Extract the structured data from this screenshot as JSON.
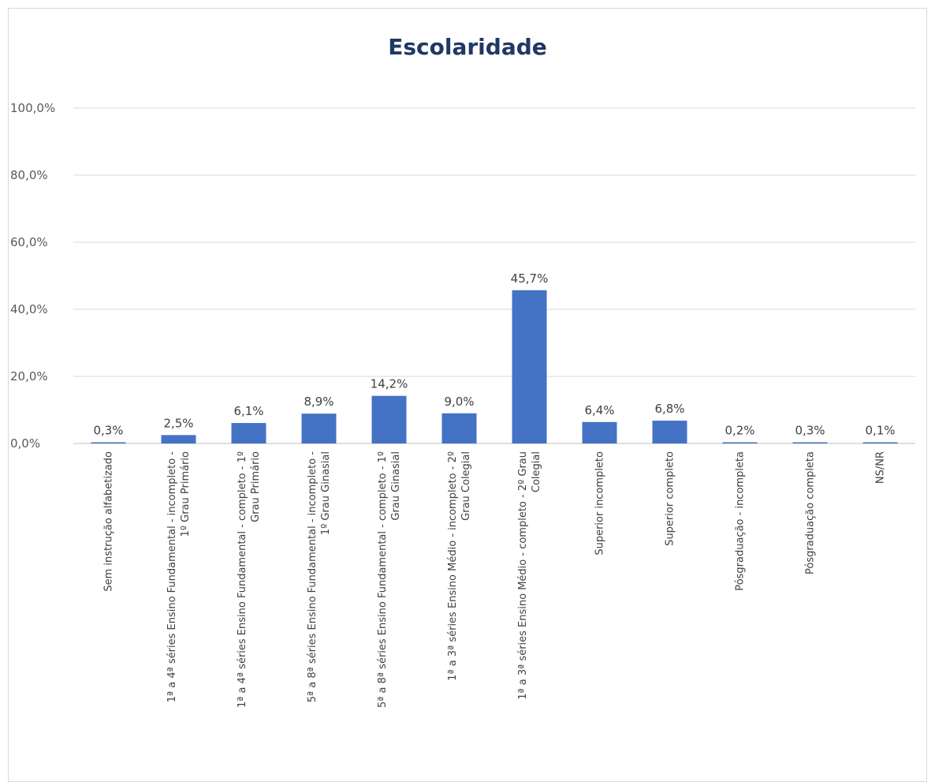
{
  "chart_data": {
    "type": "bar",
    "title": "Escolaridade",
    "xlabel": "",
    "ylabel": "",
    "ylim": [
      0,
      100
    ],
    "yticks": [
      "0,0%",
      "20,0%",
      "40,0%",
      "60,0%",
      "80,0%",
      "100,0%"
    ],
    "ytick_values": [
      0,
      20,
      40,
      60,
      80,
      100
    ],
    "grid": true,
    "legend": "none",
    "bar_color": "#4472c4",
    "categories": [
      [
        "Sem instrução alfabetizado"
      ],
      [
        "1ª a 4ª séries Ensino Fundamental - incompleto -",
        "1º Grau Primário"
      ],
      [
        "1ª a 4ª séries Ensino Fundamental - completo - 1º",
        "Grau Primário"
      ],
      [
        "5ª a 8ª séries Ensino Fundamental - incompleto -",
        "1º Grau Ginasial"
      ],
      [
        "5ª a 8ª séries Ensino Fundamental - completo - 1º",
        "Grau Ginasial"
      ],
      [
        "1ª a 3ª séries Ensino Médio - incompleto - 2º",
        "Grau Colegial"
      ],
      [
        "1ª a 3ª séries Ensino Médio - completo - 2º Grau",
        "Colegial"
      ],
      [
        "Superior incompleto"
      ],
      [
        "Superior completo"
      ],
      [
        "Pósgraduação - incompleta"
      ],
      [
        "Pósgraduação completa"
      ],
      [
        "NS/NR"
      ]
    ],
    "values": [
      0.3,
      2.5,
      6.1,
      8.9,
      14.2,
      9.0,
      45.7,
      6.4,
      6.8,
      0.2,
      0.3,
      0.1
    ],
    "value_labels": [
      "0,3%",
      "2,5%",
      "6,1%",
      "8,9%",
      "14,2%",
      "9,0%",
      "45,7%",
      "6,4%",
      "6,8%",
      "0,2%",
      "0,3%",
      "0,1%"
    ]
  }
}
